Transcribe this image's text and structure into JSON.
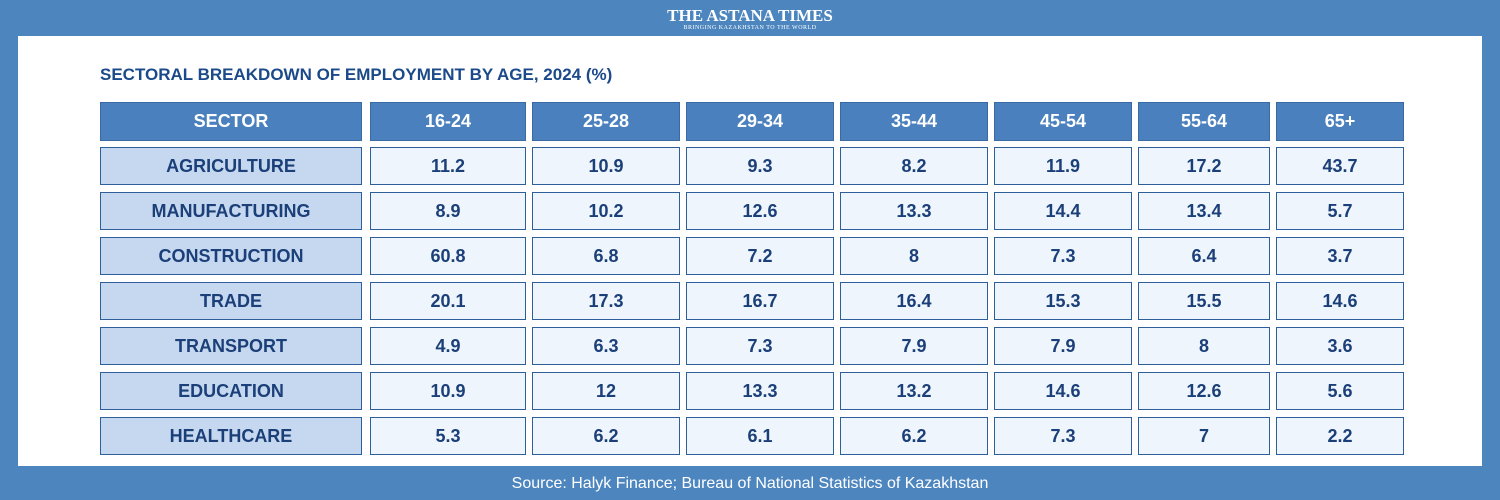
{
  "header": {
    "brand": "THE ASTANA TIMES",
    "tagline": "BRINGING KAZAKHSTAN TO THE WORLD"
  },
  "title": "SECTORAL BREAKDOWN OF EMPLOYMENT BY AGE, 2024 (%)",
  "table": {
    "columns": [
      "SECTOR",
      "16-24",
      "25-28",
      "29-34",
      "35-44",
      "45-54",
      "55-64",
      "65+"
    ],
    "rows": [
      [
        "AGRICULTURE",
        11.2,
        10.9,
        9.3,
        8.2,
        11.9,
        17.2,
        43.7
      ],
      [
        "MANUFACTURING",
        8.9,
        10.2,
        12.6,
        13.3,
        14.4,
        13.4,
        5.7
      ],
      [
        "CONSTRUCTION",
        60.8,
        6.8,
        7.2,
        8,
        7.3,
        6.4,
        3.7
      ],
      [
        "TRADE",
        20.1,
        17.3,
        16.7,
        16.4,
        15.3,
        15.5,
        14.6
      ],
      [
        "TRANSPORT",
        4.9,
        6.3,
        7.3,
        7.9,
        7.9,
        8,
        3.6
      ],
      [
        "EDUCATION",
        10.9,
        12,
        13.3,
        13.2,
        14.6,
        12.6,
        5.6
      ],
      [
        "HEALTHCARE",
        5.3,
        6.2,
        6.1,
        6.2,
        7.3,
        7,
        2.2
      ]
    ]
  },
  "footer": {
    "source": "Source: Halyk Finance; Bureau of National Statistics of Kazakhstan"
  }
}
